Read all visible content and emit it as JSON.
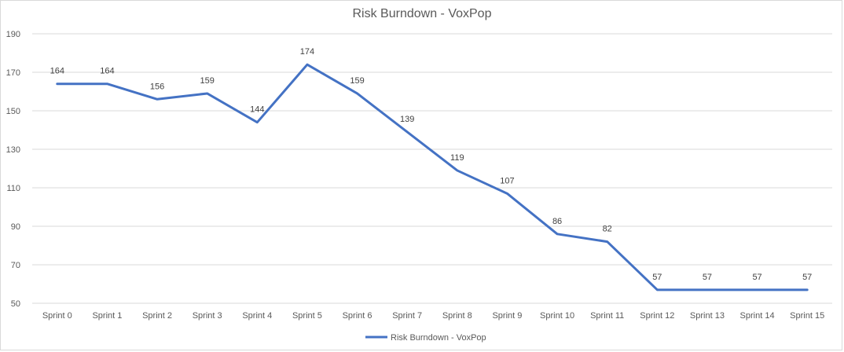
{
  "chart_data": {
    "type": "line",
    "title": "Risk Burndown - VoxPop",
    "categories": [
      "Sprint 0",
      "Sprint 1",
      "Sprint 2",
      "Sprint 3",
      "Sprint 4",
      "Sprint 5",
      "Sprint 6",
      "Sprint 7",
      "Sprint 8",
      "Sprint 9",
      "Sprint 10",
      "Sprint 11",
      "Sprint 12",
      "Sprint 13",
      "Sprint 14",
      "Sprint 15"
    ],
    "series": [
      {
        "name": "Risk Burndown - VoxPop",
        "values": [
          164,
          164,
          156,
          159,
          144,
          174,
          159,
          139,
          119,
          107,
          86,
          82,
          57,
          57,
          57,
          57
        ],
        "color": "#4472C4"
      }
    ],
    "ylim": [
      50,
      190
    ],
    "yticks": [
      50,
      70,
      90,
      110,
      130,
      150,
      170,
      190
    ],
    "grid": true,
    "legend_position": "bottom",
    "gridline_color": "#d9d9d9"
  }
}
